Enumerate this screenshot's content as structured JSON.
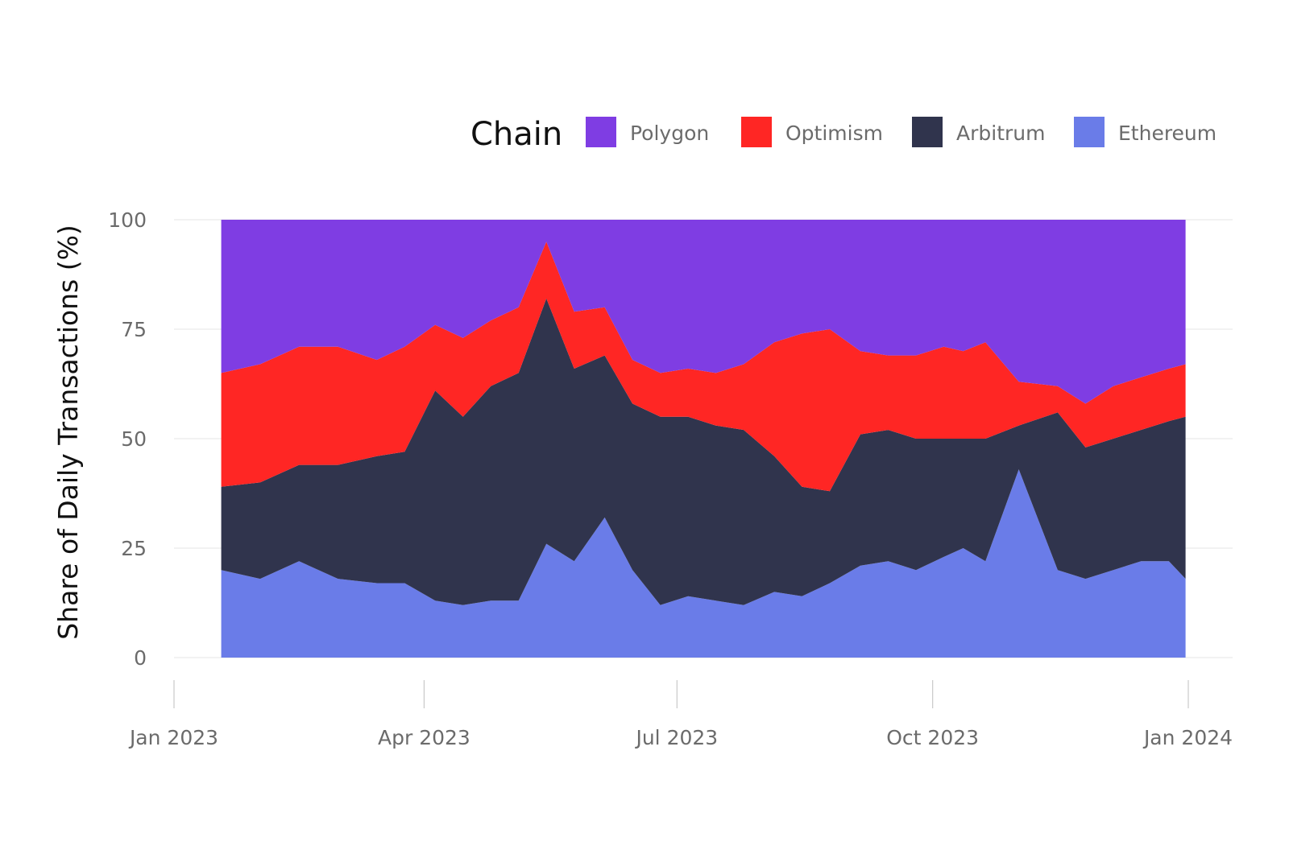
{
  "chart_data": {
    "type": "area",
    "stacked": true,
    "title": "",
    "xlabel": "",
    "ylabel": "Share of Daily Transactions (%)",
    "ylim": [
      0,
      100
    ],
    "yticks": [
      0,
      25,
      50,
      75,
      100
    ],
    "xlim": [
      "2023-01-01",
      "2024-01-01"
    ],
    "x_ticks": [
      {
        "date": "2023-01-01",
        "label": "Jan 2023"
      },
      {
        "date": "2023-04-01",
        "label": "Apr 2023"
      },
      {
        "date": "2023-07-01",
        "label": "Jul 2023"
      },
      {
        "date": "2023-10-01",
        "label": "Oct 2023"
      },
      {
        "date": "2024-01-01",
        "label": "Jan 2024"
      }
    ],
    "legend": {
      "title": "Chain",
      "placement": "top-right"
    },
    "x": [
      "2023-01-18",
      "2023-02-01",
      "2023-02-15",
      "2023-03-01",
      "2023-03-15",
      "2023-03-25",
      "2023-04-05",
      "2023-04-15",
      "2023-04-25",
      "2023-05-05",
      "2023-05-15",
      "2023-05-25",
      "2023-06-05",
      "2023-06-15",
      "2023-06-25",
      "2023-07-05",
      "2023-07-15",
      "2023-07-25",
      "2023-08-05",
      "2023-08-15",
      "2023-08-25",
      "2023-09-05",
      "2023-09-15",
      "2023-09-25",
      "2023-10-05",
      "2023-10-12",
      "2023-10-20",
      "2023-11-01",
      "2023-11-15",
      "2023-11-25",
      "2023-12-05",
      "2023-12-15",
      "2023-12-25",
      "2023-12-31"
    ],
    "series": [
      {
        "name": "Ethereum",
        "color": "#6a7ce8",
        "values": [
          20,
          18,
          22,
          18,
          17,
          17,
          13,
          12,
          13,
          13,
          26,
          22,
          32,
          20,
          12,
          14,
          13,
          12,
          15,
          14,
          17,
          21,
          22,
          20,
          23,
          25,
          22,
          43,
          20,
          18,
          20,
          22,
          22,
          18
        ]
      },
      {
        "name": "Arbitrum",
        "color": "#30344d",
        "values": [
          19,
          22,
          22,
          26,
          29,
          30,
          48,
          43,
          49,
          52,
          56,
          44,
          37,
          38,
          43,
          41,
          40,
          40,
          31,
          25,
          21,
          30,
          30,
          30,
          27,
          25,
          28,
          10,
          36,
          30,
          30,
          30,
          32,
          37
        ]
      },
      {
        "name": "Optimism",
        "color": "#ff2624",
        "values": [
          26,
          27,
          27,
          27,
          22,
          24,
          15,
          18,
          15,
          15,
          13,
          13,
          11,
          10,
          10,
          11,
          12,
          15,
          26,
          35,
          37,
          19,
          17,
          19,
          21,
          20,
          22,
          10,
          6,
          10,
          12,
          12,
          12,
          12
        ]
      },
      {
        "name": "Polygon",
        "color": "#7f3de3",
        "values": [
          35,
          33,
          29,
          29,
          32,
          29,
          24,
          27,
          23,
          20,
          5,
          21,
          20,
          32,
          35,
          34,
          35,
          33,
          28,
          26,
          25,
          30,
          31,
          31,
          29,
          30,
          28,
          37,
          38,
          42,
          38,
          36,
          34,
          33
        ]
      }
    ]
  }
}
